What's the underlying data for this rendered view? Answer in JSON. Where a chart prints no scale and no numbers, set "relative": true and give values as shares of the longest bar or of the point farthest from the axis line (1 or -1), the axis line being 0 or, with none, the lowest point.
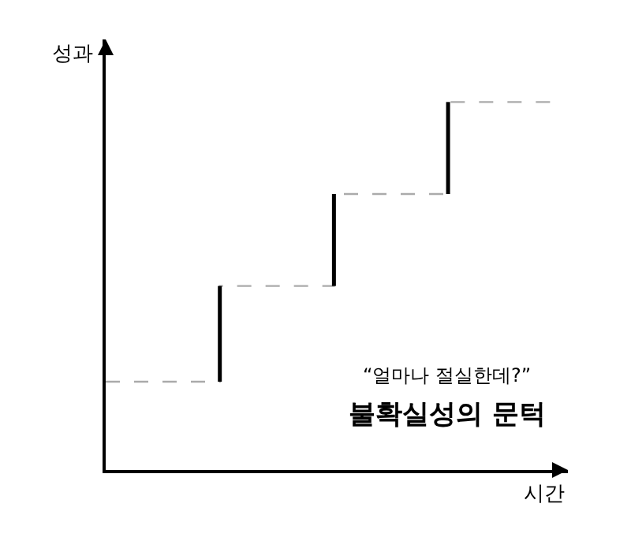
{
  "chart_data": {
    "type": "step",
    "relative": true,
    "xlabel": "시간",
    "ylabel": "성과",
    "categories": [
      null,
      null,
      null,
      null,
      null
    ],
    "series": [
      {
        "color": "#aaaaaa",
        "values": [
          0.24,
          0.5,
          0.75,
          1.0,
          1.0
        ]
      }
    ],
    "line_style": "dashed",
    "annotations": [
      "“얼마나 절실한데?”",
      "불확실성의 문턱"
    ]
  }
}
